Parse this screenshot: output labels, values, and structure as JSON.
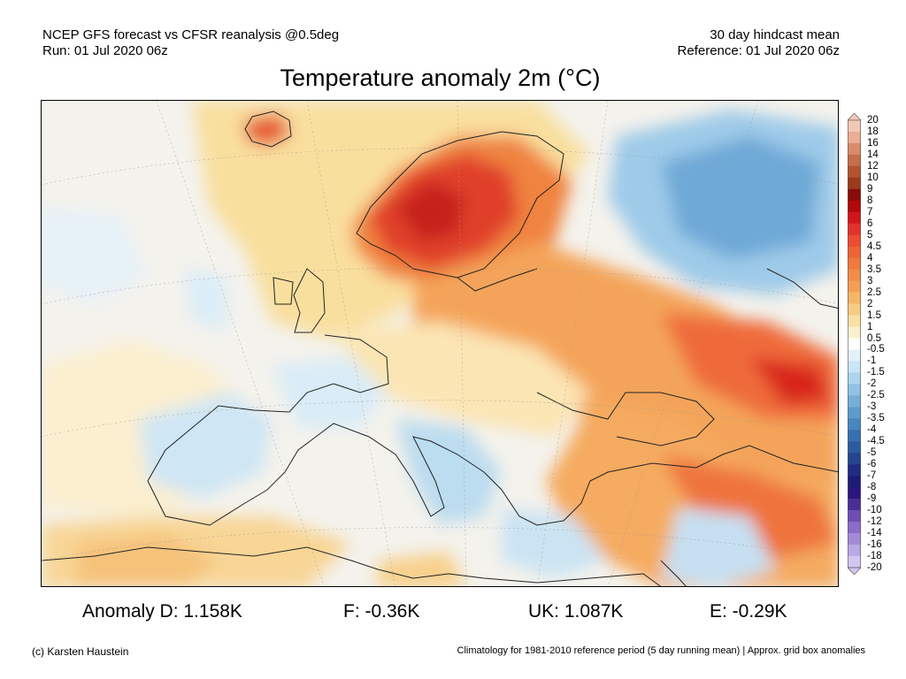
{
  "header": {
    "left_line1": "NCEP GFS forecast vs CFSR reanalysis @0.5deg",
    "left_line2": "Run: 01 Jul 2020 06z",
    "right_line1": "30 day hindcast mean",
    "right_line2": "Reference: 01 Jul 2020 06z"
  },
  "title": "Temperature anomaly 2m (°C)",
  "colorbar": {
    "labels": [
      "20",
      "18",
      "16",
      "14",
      "12",
      "10",
      "9",
      "8",
      "7",
      "6",
      "5",
      "4.5",
      "4",
      "3.5",
      "3",
      "2.5",
      "2",
      "1.5",
      "1",
      "0.5",
      "-0.5",
      "-1",
      "-1.5",
      "-2",
      "-2.5",
      "-3",
      "-3.5",
      "-4",
      "-4.5",
      "-5",
      "-6",
      "-7",
      "-8",
      "-9",
      "-10",
      "-12",
      "-14",
      "-16",
      "-18",
      "-20"
    ],
    "colors": [
      "#f2c9b6",
      "#e9ae94",
      "#d98b6c",
      "#c66d4c",
      "#b2522f",
      "#9c3a1c",
      "#8a0b0b",
      "#b2090b",
      "#d0161a",
      "#e2302c",
      "#ec4c32",
      "#ef6436",
      "#f1793d",
      "#f28d47",
      "#f3a055",
      "#f5b667",
      "#f7cc82",
      "#f9e0a5",
      "#fbf0ce",
      "#ffffff",
      "#e4f1fa",
      "#cae5f5",
      "#add5ee",
      "#8fc2e5",
      "#75afd8",
      "#5c9bcd",
      "#4787c0",
      "#376fb0",
      "#2b5b9f",
      "#24448f",
      "#1f2c82",
      "#1c1c75",
      "#2b1580",
      "#4a2d95",
      "#6d4fb3",
      "#8b6cc9",
      "#a38bd8",
      "#bba8e6",
      "#d3c6f1"
    ]
  },
  "stats": {
    "d": "Anomaly D: 1.158K",
    "f": "F: -0.36K",
    "uk": "UK: 1.087K",
    "e": "E: -0.29K"
  },
  "footer": {
    "left": "(c) Karsten Haustein",
    "right": "Climatology for 1981-2010 reference period (5 day running mean) | Approx. grid box anomalies"
  }
}
